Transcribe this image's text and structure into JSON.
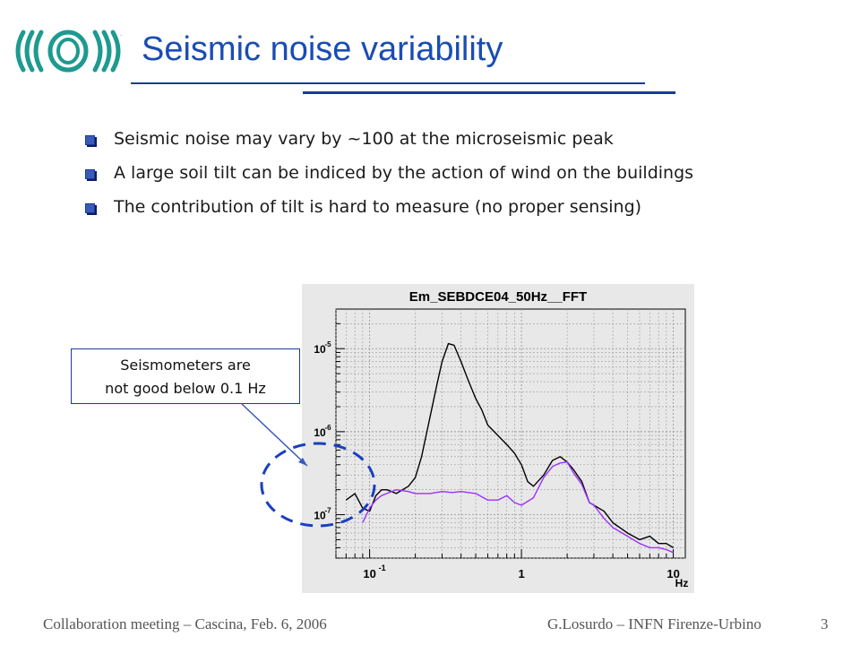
{
  "slide": {
    "title": "Seismic noise variability",
    "bullets": [
      "Seismic noise may vary by ~100 at the microseismic peak",
      "A large soil tilt can be indiced by the action of wind on the buildings",
      "The contribution of tilt is hard to measure (no proper sensing)"
    ],
    "callout_line1": "Seismometers are",
    "callout_line2": "not good below 0.1 Hz",
    "footer_left": "Collaboration meeting – Cascina, Feb. 6, 2006",
    "footer_right": "G.Losurdo – INFN Firenze-Urbino",
    "page_number": "3"
  },
  "colors": {
    "title": "#1a4db3",
    "rule": "#1a3a9a",
    "logo": "#1e9a8f",
    "plot_bg": "#e8e8e8",
    "series_black": "#000000",
    "series_purple": "#9b30ff",
    "callout_ellipse": "#1a3fbf"
  },
  "chart_data": {
    "type": "line",
    "title": "Em_SEBDCE04_50Hz__FFT",
    "x_scale": "log",
    "y_scale": "log",
    "xlim": [
      0.06,
      12
    ],
    "ylim": [
      3e-08,
      3e-05
    ],
    "x_ticks": [
      {
        "value": 0.1,
        "base": "10",
        "exp": "-1"
      },
      {
        "value": 1,
        "base": "1",
        "exp": ""
      },
      {
        "value": 10,
        "base": "10",
        "exp": ""
      }
    ],
    "x_unit": "Hz",
    "y_ticks": [
      {
        "value": 1e-07,
        "base": "10",
        "exp": "-7"
      },
      {
        "value": 1e-06,
        "base": "10",
        "exp": "-6"
      },
      {
        "value": 1e-05,
        "base": "10",
        "exp": "-5"
      }
    ],
    "grid": true,
    "series": [
      {
        "color": "#000000",
        "x": [
          0.07,
          0.08,
          0.09,
          0.1,
          0.11,
          0.12,
          0.13,
          0.15,
          0.18,
          0.2,
          0.22,
          0.25,
          0.28,
          0.3,
          0.33,
          0.36,
          0.4,
          0.45,
          0.5,
          0.55,
          0.6,
          0.7,
          0.8,
          0.9,
          1.0,
          1.1,
          1.2,
          1.4,
          1.6,
          1.8,
          2.0,
          2.2,
          2.5,
          2.8,
          3.0,
          3.5,
          4.0,
          5.0,
          6.0,
          7.0,
          8.0,
          9.0,
          10.0
        ],
        "y": [
          1.5e-07,
          1.8e-07,
          1.2e-07,
          1.1e-07,
          1.7e-07,
          2e-07,
          2e-07,
          1.8e-07,
          2.2e-07,
          2.8e-07,
          5e-07,
          1.5e-06,
          4e-06,
          7e-06,
          1.15e-05,
          1.1e-05,
          7e-06,
          4e-06,
          2.5e-06,
          1.8e-06,
          1.2e-06,
          9e-07,
          7e-07,
          5.5e-07,
          4e-07,
          2.5e-07,
          2.2e-07,
          3e-07,
          4.5e-07,
          5e-07,
          4.3e-07,
          3.5e-07,
          2.5e-07,
          1.4e-07,
          1.3e-07,
          1.1e-07,
          8e-08,
          6e-08,
          5e-08,
          5.5e-08,
          4.5e-08,
          4.5e-08,
          4e-08
        ]
      },
      {
        "color": "#9b30ff",
        "x": [
          0.09,
          0.1,
          0.11,
          0.12,
          0.13,
          0.15,
          0.18,
          0.2,
          0.25,
          0.3,
          0.35,
          0.4,
          0.5,
          0.6,
          0.7,
          0.8,
          0.9,
          1.0,
          1.2,
          1.4,
          1.6,
          1.8,
          2.0,
          2.2,
          2.5,
          2.8,
          3.0,
          3.5,
          4.0,
          5.0,
          6.0,
          7.0,
          8.0,
          9.0,
          10.0
        ],
        "y": [
          8e-08,
          1.2e-07,
          1.5e-07,
          1.7e-07,
          1.8e-07,
          2e-07,
          1.9e-07,
          1.8e-07,
          1.8e-07,
          1.9e-07,
          1.85e-07,
          1.9e-07,
          1.8e-07,
          1.5e-07,
          1.5e-07,
          1.7e-07,
          1.4e-07,
          1.3e-07,
          1.6e-07,
          2.8e-07,
          3.8e-07,
          4.2e-07,
          4.3e-07,
          3.2e-07,
          2.3e-07,
          1.4e-07,
          1.3e-07,
          9e-08,
          7e-08,
          5.5e-08,
          4.5e-08,
          4e-08,
          4e-08,
          3.8e-08,
          3.5e-08
        ]
      }
    ]
  }
}
